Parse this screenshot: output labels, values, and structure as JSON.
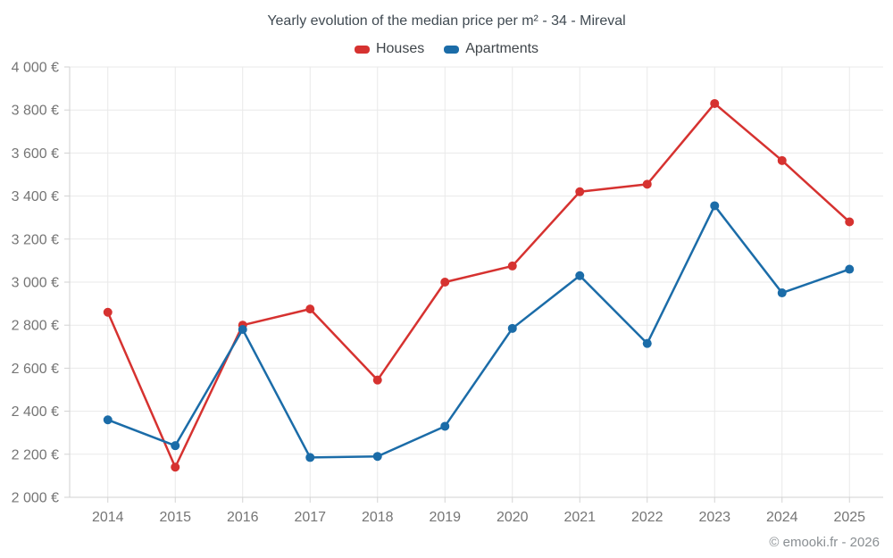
{
  "header": {
    "title": "Yearly evolution of the median price per m² - 34 - Mireval"
  },
  "footer": {
    "credit": "© emooki.fr - 2026"
  },
  "chart_data": {
    "type": "line",
    "title": "Yearly evolution of the median price per m² - 34 - Mireval",
    "categories": [
      "2014",
      "2015",
      "2016",
      "2017",
      "2018",
      "2019",
      "2020",
      "2021",
      "2022",
      "2023",
      "2024",
      "2025"
    ],
    "series": [
      {
        "name": "Houses",
        "color": "#d63230",
        "values": [
          2860,
          2140,
          2800,
          2875,
          2545,
          3000,
          3075,
          3420,
          3455,
          3830,
          3565,
          3280
        ]
      },
      {
        "name": "Apartments",
        "color": "#1b6ca8",
        "values": [
          2360,
          2240,
          2780,
          2185,
          2190,
          2330,
          2785,
          3030,
          2715,
          3355,
          2950,
          3060
        ]
      }
    ],
    "ylim": [
      2000,
      4000
    ],
    "y_tick_step": 200,
    "y_tick_labels": [
      "2 000 €",
      "2 200 €",
      "2 400 €",
      "2 600 €",
      "2 800 €",
      "3 000 €",
      "3 200 €",
      "3 400 €",
      "3 600 €",
      "3 800 €",
      "4 000 €"
    ],
    "grid": true,
    "legend_position": "top",
    "credit": "© emooki.fr - 2026",
    "colors": {
      "gridline": "#e9e9e9",
      "axis_line": "#d2d2d2",
      "axis_text": "#757575"
    }
  }
}
